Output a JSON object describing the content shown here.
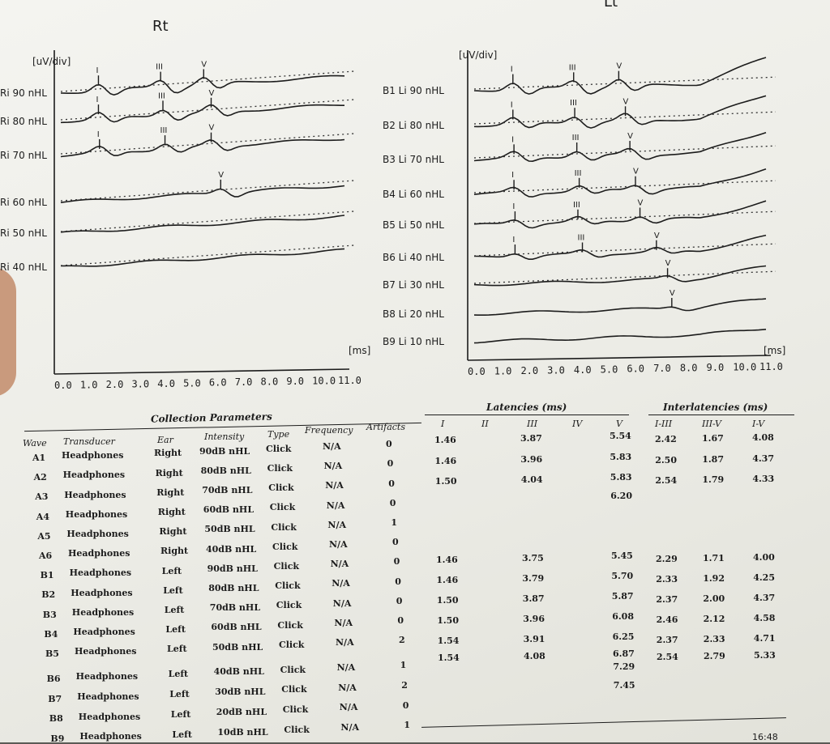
{
  "chart_data": [
    {
      "type": "line",
      "title": "Rt",
      "ylabel": "[uV/div]",
      "xlabel": "[ms]",
      "x_ticks": [
        "0.0",
        "1.0",
        "2.0",
        "3.0",
        "4.0",
        "5.0",
        "6.0",
        "7.0",
        "8.0",
        "9.0",
        "10.0",
        "11.0"
      ],
      "xlim": [
        0,
        11
      ],
      "series": [
        {
          "name": "Ri 90 nHL",
          "peaks": {
            "I": 1.46,
            "III": 3.87,
            "V": 5.54
          }
        },
        {
          "name": "Ri 80 nHL",
          "peaks": {
            "I": 1.46,
            "III": 3.96,
            "V": 5.83
          }
        },
        {
          "name": "Ri 70 nHL",
          "peaks": {
            "I": 1.5,
            "III": 4.04,
            "V": 5.83
          }
        },
        {
          "name": "Ri 60 nHL",
          "peaks": {
            "V": 6.2
          }
        },
        {
          "name": "Ri 50 nHL",
          "peaks": {}
        },
        {
          "name": "Ri 40 nHL",
          "peaks": {}
        }
      ]
    },
    {
      "type": "line",
      "title": "Lt",
      "ylabel": "[uV/div]",
      "xlabel": "[ms]",
      "x_ticks": [
        "0.0",
        "1.0",
        "2.0",
        "3.0",
        "4.0",
        "5.0",
        "6.0",
        "7.0",
        "8.0",
        "9.0",
        "10.0",
        "11.0"
      ],
      "xlim": [
        0,
        11
      ],
      "series": [
        {
          "name": "B1 Li 90 nHL",
          "peaks": {
            "I": 1.46,
            "III": 3.75,
            "V": 5.45
          }
        },
        {
          "name": "B2 Li 80 nHL",
          "peaks": {
            "I": 1.46,
            "III": 3.79,
            "V": 5.7
          }
        },
        {
          "name": "B3 Li 70 nHL",
          "peaks": {
            "I": 1.5,
            "III": 3.87,
            "V": 5.87
          }
        },
        {
          "name": "B4 Li 60 nHL",
          "peaks": {
            "I": 1.5,
            "III": 3.96,
            "V": 6.08
          }
        },
        {
          "name": "B5 Li 50 nHL",
          "peaks": {
            "I": 1.54,
            "III": 3.91,
            "V": 6.25
          }
        },
        {
          "name": "B6 Li 40 nHL",
          "peaks": {
            "I": 1.54,
            "III": 4.08,
            "V": 6.87
          }
        },
        {
          "name": "B7 Li 30 nHL",
          "peaks": {
            "V": 7.29
          }
        },
        {
          "name": "B8 Li 20 nHL",
          "peaks": {
            "V": 7.45
          }
        },
        {
          "name": "B9 Li 10 nHL",
          "peaks": {}
        }
      ]
    }
  ],
  "peak_labels": {
    "I": "I",
    "III": "III",
    "V": "V"
  },
  "collection": {
    "title": "Collection Parameters",
    "headers": [
      "Wave",
      "Transducer",
      "Ear",
      "Intensity",
      "Type",
      "Frequency",
      "Artifacts"
    ],
    "rows": [
      [
        "A1",
        "Headphones",
        "Right",
        "90dB nHL",
        "Click",
        "N/A",
        "0"
      ],
      [
        "A2",
        "Headphones",
        "Right",
        "80dB nHL",
        "Click",
        "N/A",
        "0"
      ],
      [
        "A3",
        "Headphones",
        "Right",
        "70dB nHL",
        "Click",
        "N/A",
        "0"
      ],
      [
        "A4",
        "Headphones",
        "Right",
        "60dB nHL",
        "Click",
        "N/A",
        "0"
      ],
      [
        "A5",
        "Headphones",
        "Right",
        "50dB nHL",
        "Click",
        "N/A",
        "1"
      ],
      [
        "A6",
        "Headphones",
        "Right",
        "40dB nHL",
        "Click",
        "N/A",
        "0"
      ],
      [
        "B1",
        "Headphones",
        "Left",
        "90dB nHL",
        "Click",
        "N/A",
        "0"
      ],
      [
        "B2",
        "Headphones",
        "Left",
        "80dB nHL",
        "Click",
        "N/A",
        "0"
      ],
      [
        "B3",
        "Headphones",
        "Left",
        "70dB nHL",
        "Click",
        "N/A",
        "0"
      ],
      [
        "B4",
        "Headphones",
        "Left",
        "60dB nHL",
        "Click",
        "N/A",
        "0"
      ],
      [
        "B5",
        "Headphones",
        "Left",
        "50dB nHL",
        "Click",
        "N/A",
        "2"
      ],
      [
        "B6",
        "Headphones",
        "Left",
        "40dB nHL",
        "Click",
        "N/A",
        "1"
      ],
      [
        "B7",
        "Headphones",
        "Left",
        "30dB nHL",
        "Click",
        "N/A",
        "2"
      ],
      [
        "B8",
        "Headphones",
        "Left",
        "20dB nHL",
        "Click",
        "N/A",
        "0"
      ],
      [
        "B9",
        "Headphones",
        "Left",
        "10dB nHL",
        "Click",
        "N/A",
        "1"
      ]
    ]
  },
  "latencies": {
    "title": "Latencies (ms)",
    "headers": [
      "I",
      "II",
      "III",
      "IV",
      "V"
    ],
    "rows": [
      [
        "1.46",
        "",
        "3.87",
        "",
        "5.54"
      ],
      [
        "1.46",
        "",
        "3.96",
        "",
        "5.83"
      ],
      [
        "1.50",
        "",
        "4.04",
        "",
        "5.83"
      ],
      [
        "",
        "",
        "",
        "",
        "6.20"
      ],
      [
        "",
        "",
        "",
        "",
        ""
      ],
      [
        "1.46",
        "",
        "3.75",
        "",
        "5.45"
      ],
      [
        "1.46",
        "",
        "3.79",
        "",
        "5.70"
      ],
      [
        "1.50",
        "",
        "3.87",
        "",
        "5.87"
      ],
      [
        "1.50",
        "",
        "3.96",
        "",
        "6.08"
      ],
      [
        "1.54",
        "",
        "3.91",
        "",
        "6.25"
      ],
      [
        "1.54",
        "",
        "4.08",
        "",
        "6.87"
      ],
      [
        "",
        "",
        "",
        "",
        "7.29"
      ],
      [
        "",
        "",
        "",
        "",
        "7.45"
      ]
    ]
  },
  "interlatencies": {
    "title": "Interlatencies (ms)",
    "headers": [
      "I-III",
      "III-V",
      "I-V"
    ],
    "rows": [
      [
        "2.42",
        "1.67",
        "4.08"
      ],
      [
        "2.50",
        "1.87",
        "4.37"
      ],
      [
        "2.54",
        "1.79",
        "4.33"
      ],
      [
        "",
        "",
        ""
      ],
      [
        "",
        "",
        ""
      ],
      [
        "2.29",
        "1.71",
        "4.00"
      ],
      [
        "2.33",
        "1.92",
        "4.25"
      ],
      [
        "2.37",
        "2.00",
        "4.37"
      ],
      [
        "2.46",
        "2.12",
        "4.58"
      ],
      [
        "2.37",
        "2.33",
        "4.71"
      ],
      [
        "2.54",
        "2.79",
        "5.33"
      ]
    ]
  },
  "footer_time": "16:48"
}
